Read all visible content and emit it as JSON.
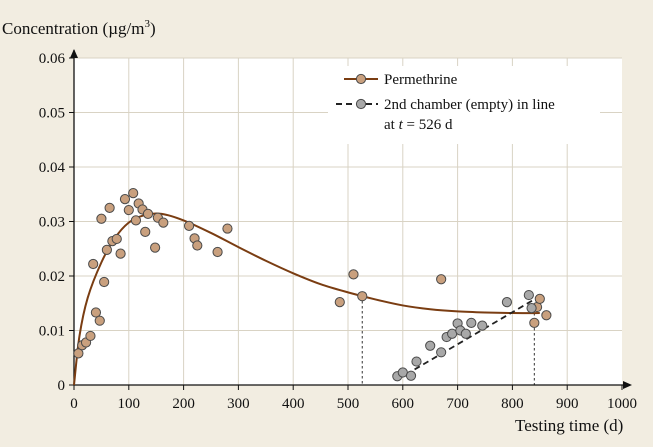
{
  "chart_data": {
    "type": "scatter",
    "ylabel": "Concentration (µg/m",
    "ylabel_sup": "3",
    "ylabel_close": ")",
    "xlabel": "Testing time (d)",
    "xlim": [
      0,
      1000
    ],
    "ylim": [
      0,
      0.06
    ],
    "x_ticks": [
      0,
      100,
      200,
      300,
      400,
      500,
      600,
      700,
      800,
      900,
      1000
    ],
    "y_ticks": [
      {
        "value": 0,
        "label": "0"
      },
      {
        "value": 0.01,
        "label": "0.01"
      },
      {
        "value": 0.02,
        "label": "0.02"
      },
      {
        "value": 0.03,
        "label": "0.03"
      },
      {
        "value": 0.04,
        "label": "0.04"
      },
      {
        "value": 0.05,
        "label": "0.05"
      },
      {
        "value": 0.06,
        "label": "0.06"
      }
    ],
    "grid": true,
    "legend_position": "top-right",
    "colors": {
      "background": "#f2ede1",
      "plot_background": "#ffffff",
      "grid": "#d9d3c4",
      "curve": "#7a3d12",
      "marker_series_1": "#c9a07e",
      "marker_series_2": "#a8a8a8",
      "marker_edge": "#4a4a4a"
    },
    "series": [
      {
        "name": "Permethrine",
        "points": [
          {
            "x": 8,
            "y": 0.0058
          },
          {
            "x": 15,
            "y": 0.0073
          },
          {
            "x": 22,
            "y": 0.0078
          },
          {
            "x": 30,
            "y": 0.009
          },
          {
            "x": 35,
            "y": 0.0222
          },
          {
            "x": 40,
            "y": 0.0133
          },
          {
            "x": 47,
            "y": 0.0118
          },
          {
            "x": 50,
            "y": 0.0305
          },
          {
            "x": 55,
            "y": 0.0189
          },
          {
            "x": 60,
            "y": 0.0248
          },
          {
            "x": 65,
            "y": 0.0325
          },
          {
            "x": 70,
            "y": 0.0264
          },
          {
            "x": 78,
            "y": 0.0268
          },
          {
            "x": 85,
            "y": 0.0241
          },
          {
            "x": 93,
            "y": 0.0341
          },
          {
            "x": 100,
            "y": 0.0321
          },
          {
            "x": 108,
            "y": 0.0352
          },
          {
            "x": 113,
            "y": 0.0302
          },
          {
            "x": 118,
            "y": 0.0333
          },
          {
            "x": 125,
            "y": 0.0322
          },
          {
            "x": 130,
            "y": 0.0281
          },
          {
            "x": 135,
            "y": 0.0314
          },
          {
            "x": 148,
            "y": 0.0252
          },
          {
            "x": 153,
            "y": 0.0307
          },
          {
            "x": 163,
            "y": 0.0298
          },
          {
            "x": 210,
            "y": 0.0292
          },
          {
            "x": 220,
            "y": 0.0269
          },
          {
            "x": 225,
            "y": 0.0256
          },
          {
            "x": 262,
            "y": 0.0244
          },
          {
            "x": 280,
            "y": 0.0287
          },
          {
            "x": 485,
            "y": 0.0152
          },
          {
            "x": 510,
            "y": 0.0203
          },
          {
            "x": 526,
            "y": 0.0163
          },
          {
            "x": 670,
            "y": 0.0194
          },
          {
            "x": 840,
            "y": 0.0114
          },
          {
            "x": 845,
            "y": 0.0143
          },
          {
            "x": 850,
            "y": 0.0158
          },
          {
            "x": 862,
            "y": 0.0128
          }
        ],
        "fit_curve": [
          {
            "x": 0,
            "y": 0
          },
          {
            "x": 10,
            "y": 0.009
          },
          {
            "x": 25,
            "y": 0.016
          },
          {
            "x": 50,
            "y": 0.0225
          },
          {
            "x": 75,
            "y": 0.027
          },
          {
            "x": 100,
            "y": 0.0298
          },
          {
            "x": 130,
            "y": 0.0312
          },
          {
            "x": 160,
            "y": 0.0314
          },
          {
            "x": 200,
            "y": 0.0302
          },
          {
            "x": 250,
            "y": 0.0279
          },
          {
            "x": 300,
            "y": 0.0253
          },
          {
            "x": 350,
            "y": 0.0228
          },
          {
            "x": 400,
            "y": 0.0205
          },
          {
            "x": 450,
            "y": 0.0185
          },
          {
            "x": 500,
            "y": 0.017
          },
          {
            "x": 550,
            "y": 0.0157
          },
          {
            "x": 600,
            "y": 0.0146
          },
          {
            "x": 650,
            "y": 0.0139
          },
          {
            "x": 700,
            "y": 0.0135
          },
          {
            "x": 750,
            "y": 0.0133
          },
          {
            "x": 800,
            "y": 0.0132
          },
          {
            "x": 850,
            "y": 0.0132
          }
        ]
      },
      {
        "name": "2nd chamber (empty) in line",
        "name_line2": "at",
        "name_line2_var": "t",
        "name_line2_rest": " = 526 d",
        "points": [
          {
            "x": 590,
            "y": 0.0016
          },
          {
            "x": 600,
            "y": 0.0023
          },
          {
            "x": 615,
            "y": 0.0017
          },
          {
            "x": 625,
            "y": 0.0043
          },
          {
            "x": 650,
            "y": 0.0072
          },
          {
            "x": 670,
            "y": 0.006
          },
          {
            "x": 680,
            "y": 0.0088
          },
          {
            "x": 690,
            "y": 0.0094
          },
          {
            "x": 700,
            "y": 0.0113
          },
          {
            "x": 705,
            "y": 0.01
          },
          {
            "x": 715,
            "y": 0.0094
          },
          {
            "x": 725,
            "y": 0.0114
          },
          {
            "x": 745,
            "y": 0.0109
          },
          {
            "x": 790,
            "y": 0.0152
          },
          {
            "x": 830,
            "y": 0.0165
          },
          {
            "x": 835,
            "y": 0.0141
          }
        ],
        "fit_line": [
          {
            "x": 590,
            "y": 0.001
          },
          {
            "x": 845,
            "y": 0.016
          }
        ]
      }
    ],
    "markers": [
      {
        "x": 526
      },
      {
        "x": 840
      }
    ]
  }
}
